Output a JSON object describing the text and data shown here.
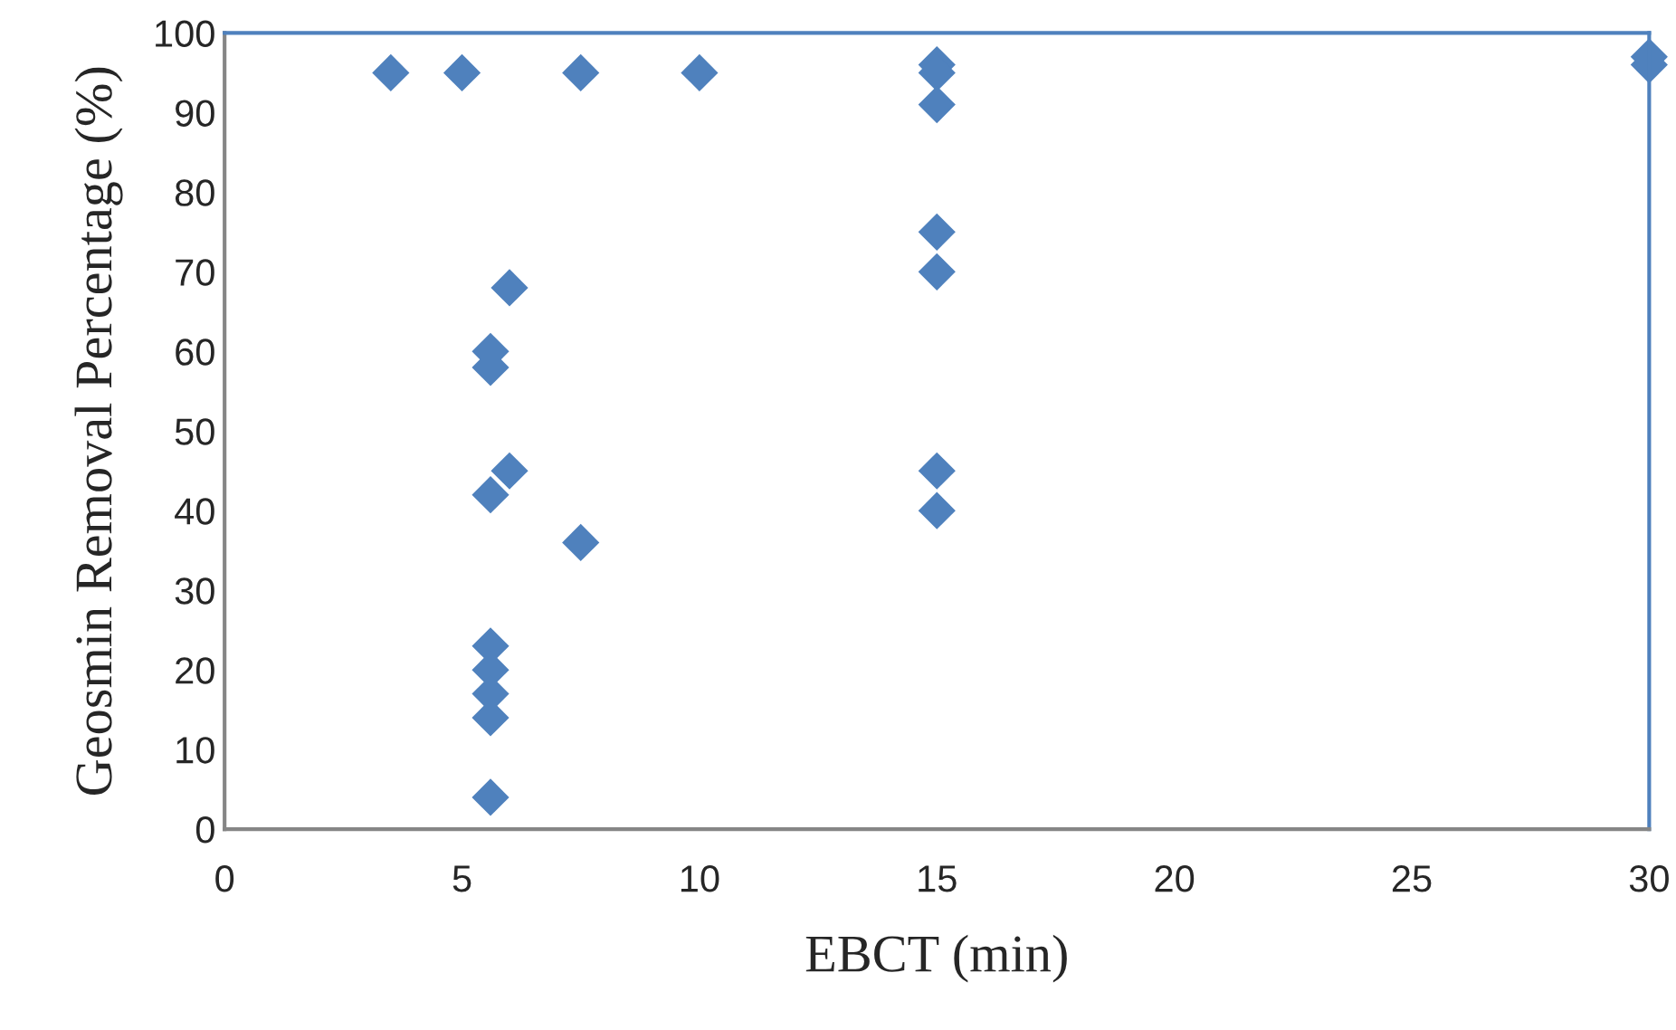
{
  "chart_data": {
    "type": "scatter",
    "xlabel": "EBCT (min)",
    "ylabel": "Geosmin Removal Percentage (%)",
    "series": [
      {
        "color": "#4f81bd",
        "x": [
          3.5,
          5,
          7.5,
          10,
          15,
          15,
          15,
          15,
          15,
          15,
          15,
          30,
          30,
          6,
          5.6,
          5.6,
          6,
          5.6,
          7.5,
          5.6,
          5.6,
          5.6,
          5.6,
          5.6
        ],
        "values": [
          95,
          95,
          95,
          95,
          96,
          95,
          91,
          75,
          70,
          45,
          40,
          97,
          96,
          68,
          60,
          58,
          45,
          42,
          36,
          23,
          20,
          17,
          14,
          4
        ]
      }
    ],
    "marker": "diamond",
    "xlim": [
      0,
      30
    ],
    "xticks": [
      0,
      5,
      10,
      15,
      20,
      25,
      30
    ],
    "ylim": [
      0,
      100
    ],
    "yticks": [
      0,
      10,
      20,
      30,
      40,
      50,
      60,
      70,
      80,
      90,
      100
    ],
    "grid": false,
    "legend": false
  }
}
